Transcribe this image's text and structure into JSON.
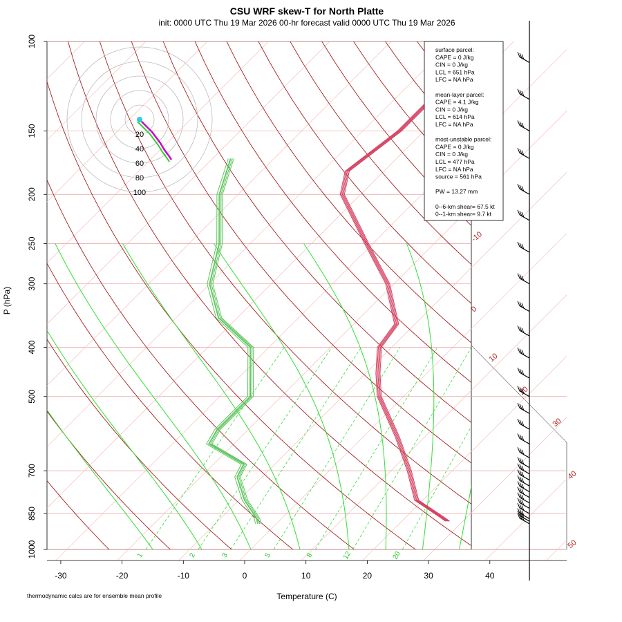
{
  "chart_data": {
    "type": "skew-t",
    "title": "CSU WRF skew-T for North Platte",
    "subtitle": "init: 0000 UTC Thu 19 Mar 2026     00-hr forecast valid 0000 UTC Thu 19 Mar 2026",
    "xlabel": "Temperature (C)",
    "ylabel": "P (hPa)",
    "xlim": [
      -33,
      45
    ],
    "pressure_ticks": [
      100,
      150,
      200,
      250,
      300,
      400,
      500,
      700,
      850,
      1000
    ],
    "temperature_ticks": [
      -30,
      -20,
      -10,
      0,
      10,
      20,
      30,
      40
    ],
    "isotherm_labels": [
      -10,
      0,
      10,
      20,
      30,
      40,
      50
    ],
    "mixing_ratio_labels": [
      1,
      2,
      3,
      5,
      8,
      12,
      20
    ],
    "hodograph_rings": [
      20,
      40,
      60,
      80,
      100
    ],
    "legend": [
      "surface parcel:",
      "CAPE = 0 J/kg",
      "CIN = 0 J/kg",
      "LCL = 651 hPa",
      "LFC = NA hPa",
      "",
      "mean-layer parcel:",
      "CAPE = 4.1 J/kg",
      "CIN = 0 J/kg",
      "LCL = 614 hPa",
      "LFC = NA hPa",
      "",
      "most-unstable parcel:",
      "CAPE = 0 J/kg",
      "CIN = 0 J/kg",
      "LCL = 477 hPa",
      "LFC = NA hPa",
      "source = 561 hPa",
      "",
      "PW =  13.27 mm",
      "",
      "0--6-km shear= 67.5 kt",
      "0--1-km shear= 9.7 kt"
    ],
    "footnote": "thermodynamic calcs are for ensemble mean profile",
    "temperature_profile": [
      {
        "p": 880,
        "t": 27.5
      },
      {
        "p": 860,
        "t": 25.5
      },
      {
        "p": 800,
        "t": 19
      },
      {
        "p": 700,
        "t": 13
      },
      {
        "p": 600,
        "t": 5.5
      },
      {
        "p": 500,
        "t": -4
      },
      {
        "p": 450,
        "t": -8
      },
      {
        "p": 400,
        "t": -12
      },
      {
        "p": 360,
        "t": -13
      },
      {
        "p": 300,
        "t": -21
      },
      {
        "p": 250,
        "t": -31
      },
      {
        "p": 200,
        "t": -43
      },
      {
        "p": 180,
        "t": -46
      },
      {
        "p": 150,
        "t": -44
      },
      {
        "p": 120,
        "t": -44
      },
      {
        "p": 110,
        "t": -44
      }
    ],
    "dewpoint_profile": [
      {
        "p": 890,
        "t": -3
      },
      {
        "p": 870,
        "t": -4
      },
      {
        "p": 800,
        "t": -9
      },
      {
        "p": 720,
        "t": -14
      },
      {
        "p": 680,
        "t": -15
      },
      {
        "p": 620,
        "t": -24
      },
      {
        "p": 580,
        "t": -25
      },
      {
        "p": 500,
        "t": -25
      },
      {
        "p": 400,
        "t": -33
      },
      {
        "p": 350,
        "t": -43
      },
      {
        "p": 300,
        "t": -50
      },
      {
        "p": 250,
        "t": -55
      },
      {
        "p": 200,
        "t": -63
      },
      {
        "p": 170,
        "t": -67
      }
    ],
    "wind_barb_pressures": [
      110,
      130,
      150,
      170,
      200,
      225,
      260,
      300,
      340,
      380,
      420,
      460,
      500,
      540,
      580,
      620,
      660,
      690,
      710,
      730,
      750,
      770,
      790,
      810,
      830,
      850,
      870,
      880,
      890
    ]
  }
}
